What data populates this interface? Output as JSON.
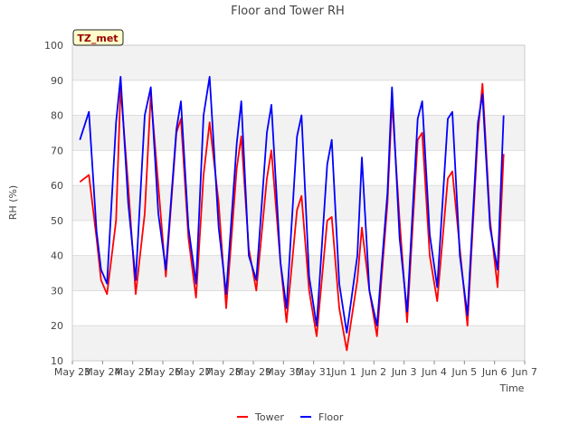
{
  "chart_data": {
    "type": "line",
    "title": "Floor and Tower RH",
    "xlabel": "Time",
    "ylabel": "RH (%)",
    "site_badge": "TZ_met",
    "ylim": [
      10,
      100
    ],
    "yticks": [
      10,
      20,
      30,
      40,
      50,
      60,
      70,
      80,
      90,
      100
    ],
    "xlim": [
      0,
      15
    ],
    "xtick_labels": [
      "May 23",
      "May 24",
      "May 25",
      "May 26",
      "May 27",
      "May 28",
      "May 29",
      "May 30",
      "May 31",
      "Jun 1",
      "Jun 2",
      "Jun 3",
      "Jun 4",
      "Jun 5",
      "Jun 6",
      "Jun 7"
    ],
    "x_unit": "days since May 23 00:00",
    "grid": true,
    "legend_position": "bottom-center",
    "series": [
      {
        "name": "Tower",
        "color": "#ff0000",
        "x": [
          0.25,
          0.55,
          0.8,
          0.95,
          1.15,
          1.45,
          1.6,
          1.85,
          2.1,
          2.4,
          2.6,
          2.85,
          3.1,
          3.45,
          3.6,
          3.85,
          4.1,
          4.35,
          4.55,
          4.85,
          5.1,
          5.45,
          5.6,
          5.85,
          6.1,
          6.45,
          6.6,
          6.9,
          7.1,
          7.45,
          7.6,
          7.85,
          8.1,
          8.45,
          8.6,
          8.85,
          9.1,
          9.45,
          9.6,
          9.85,
          10.1,
          10.45,
          10.6,
          10.85,
          11.1,
          11.45,
          11.6,
          11.85,
          12.1,
          12.45,
          12.6,
          12.85,
          13.1,
          13.45,
          13.6,
          13.85,
          14.1,
          14.3
        ],
        "y": [
          61,
          63,
          45,
          33,
          29,
          50,
          88,
          60,
          29,
          52,
          86,
          60,
          34,
          75,
          79,
          45,
          28,
          63,
          78,
          55,
          25,
          65,
          74,
          42,
          30,
          62,
          70,
          38,
          21,
          53,
          57,
          30,
          17,
          50,
          51,
          25,
          13,
          33,
          48,
          30,
          17,
          55,
          84,
          50,
          21,
          73,
          75,
          40,
          27,
          62,
          64,
          42,
          20,
          75,
          89,
          50,
          31,
          69
        ]
      },
      {
        "name": "Floor",
        "color": "#0000ff",
        "x": [
          0.25,
          0.55,
          0.8,
          0.95,
          1.15,
          1.45,
          1.6,
          1.85,
          2.1,
          2.4,
          2.6,
          2.85,
          3.1,
          3.45,
          3.6,
          3.85,
          4.1,
          4.35,
          4.55,
          4.85,
          5.1,
          5.45,
          5.6,
          5.85,
          6.1,
          6.45,
          6.6,
          6.9,
          7.1,
          7.45,
          7.6,
          7.85,
          8.1,
          8.45,
          8.6,
          8.85,
          9.1,
          9.45,
          9.6,
          9.85,
          10.1,
          10.45,
          10.6,
          10.85,
          11.1,
          11.45,
          11.6,
          11.85,
          12.1,
          12.45,
          12.6,
          12.85,
          13.1,
          13.45,
          13.6,
          13.85,
          14.1,
          14.3
        ],
        "y": [
          73,
          81,
          47,
          36,
          32,
          78,
          91,
          55,
          33,
          80,
          88,
          52,
          36,
          76,
          84,
          48,
          32,
          80,
          91,
          48,
          29,
          72,
          84,
          40,
          33,
          75,
          83,
          38,
          25,
          74,
          80,
          34,
          20,
          66,
          73,
          32,
          18,
          40,
          68,
          30,
          20,
          58,
          88,
          45,
          24,
          79,
          84,
          46,
          31,
          79,
          81,
          40,
          23,
          78,
          86,
          48,
          36,
          80
        ]
      }
    ]
  }
}
